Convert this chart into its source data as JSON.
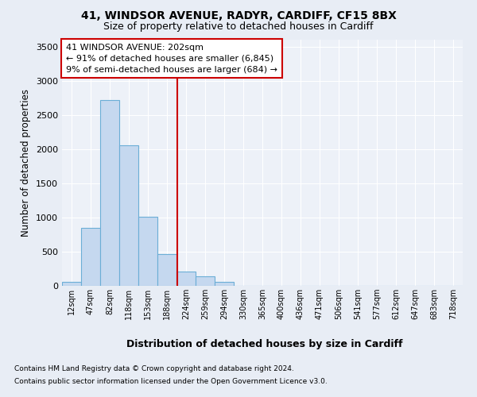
{
  "title1": "41, WINDSOR AVENUE, RADYR, CARDIFF, CF15 8BX",
  "title2": "Size of property relative to detached houses in Cardiff",
  "xlabel": "Distribution of detached houses by size in Cardiff",
  "ylabel": "Number of detached properties",
  "bar_labels": [
    "12sqm",
    "47sqm",
    "82sqm",
    "118sqm",
    "153sqm",
    "188sqm",
    "224sqm",
    "259sqm",
    "294sqm",
    "330sqm",
    "365sqm",
    "400sqm",
    "436sqm",
    "471sqm",
    "506sqm",
    "541sqm",
    "577sqm",
    "612sqm",
    "647sqm",
    "683sqm",
    "718sqm"
  ],
  "bar_values": [
    55,
    850,
    2720,
    2060,
    1010,
    460,
    210,
    145,
    60,
    0,
    0,
    0,
    0,
    0,
    0,
    0,
    0,
    0,
    0,
    0,
    0
  ],
  "bar_color": "#c5d8ef",
  "bar_edge_color": "#6baed6",
  "vline_x_idx": 5.55,
  "annotation_line1": "41 WINDSOR AVENUE: 202sqm",
  "annotation_line2": "← 91% of detached houses are smaller (6,845)",
  "annotation_line3": "9% of semi-detached houses are larger (684) →",
  "vline_color": "#cc0000",
  "footnote1": "Contains HM Land Registry data © Crown copyright and database right 2024.",
  "footnote2": "Contains public sector information licensed under the Open Government Licence v3.0.",
  "ylim": [
    0,
    3600
  ],
  "yticks": [
    0,
    500,
    1000,
    1500,
    2000,
    2500,
    3000,
    3500
  ],
  "bg_color": "#e8edf5",
  "plot_bg": "#edf1f8"
}
